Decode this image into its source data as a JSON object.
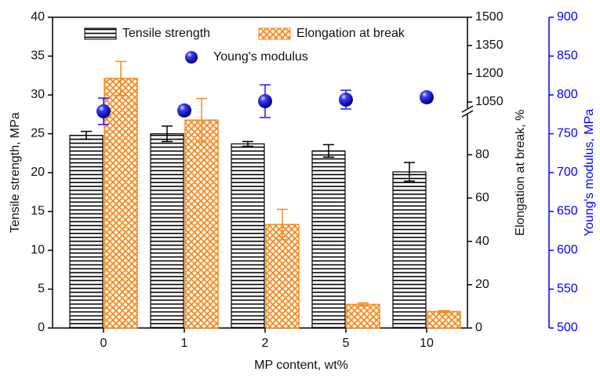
{
  "chart_data": {
    "type": "bar",
    "x_label": "MP content, wt%",
    "y_label": "Tensile strength, MPa",
    "y2_label": "Elongation at break, %",
    "y3_label": "Young's modulus, MPa",
    "categories": [
      "0",
      "1",
      "2",
      "5",
      "10"
    ],
    "series": [
      {
        "name": "Tensile strength",
        "color": "#000000",
        "values": [
          24.8,
          25.0,
          23.7,
          22.8,
          20.1
        ],
        "errors": [
          0.5,
          1.0,
          0.3,
          0.8,
          1.2
        ]
      },
      {
        "name": "Elongation at break",
        "color": "#f58a1f",
        "axis": "y2",
        "values": [
          1175,
          96,
          47.8,
          10.9,
          7.6
        ],
        "errors": [
          90,
          10,
          7,
          0.7,
          0.4
        ]
      },
      {
        "name": "Young's modulus",
        "color": "#1a1aff",
        "axis": "y3",
        "values": [
          779,
          780,
          792,
          794,
          797
        ],
        "errors": [
          17,
          6,
          21,
          12,
          6
        ]
      }
    ],
    "ylim": [
      0,
      40
    ],
    "yticks": [
      0,
      5,
      10,
      15,
      20,
      25,
      30,
      35,
      40
    ],
    "y2lim": [
      0,
      1500
    ],
    "y2break": [
      100,
      1000
    ],
    "y2ticks": [
      0,
      20,
      40,
      60,
      80,
      1050,
      1200,
      1350,
      1500
    ],
    "y3lim": [
      500,
      900
    ],
    "y3ticks": [
      500,
      550,
      600,
      650,
      700,
      750,
      800,
      850,
      900
    ],
    "y3color": "#0000ff"
  }
}
